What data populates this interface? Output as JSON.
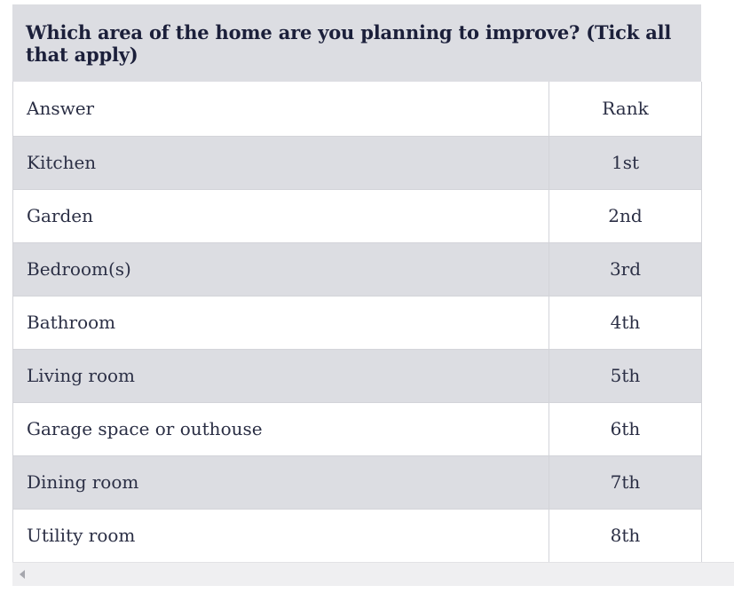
{
  "table": {
    "caption": "Which area of the home are you planning to improve? (Tick all that apply)",
    "headers": {
      "answer": "Answer",
      "rank": "Rank"
    },
    "rows": [
      {
        "answer": "Kitchen",
        "rank": "1st"
      },
      {
        "answer": "Garden",
        "rank": "2nd"
      },
      {
        "answer": "Bedroom(s)",
        "rank": "3rd"
      },
      {
        "answer": "Bathroom",
        "rank": "4th"
      },
      {
        "answer": "Living room",
        "rank": "5th"
      },
      {
        "answer": "Garage space or outhouse",
        "rank": "6th"
      },
      {
        "answer": "Dining room",
        "rank": "7th"
      },
      {
        "answer": "Utility room",
        "rank": "8th"
      }
    ]
  },
  "scrollbar": {
    "left_arrow_icon": "chevron-left-icon"
  },
  "colors": {
    "caption_bg": "#dcdde2",
    "stripe_bg": "#dcdde2",
    "text": "#2b2f45",
    "caption_text": "#1b1f3a",
    "border": "#d3d4d9"
  }
}
